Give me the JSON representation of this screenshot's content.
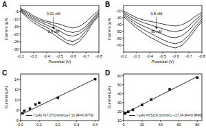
{
  "chart_data": [
    {
      "type": "line",
      "title": "A",
      "x_label": "Potential (V)",
      "y_label": "Current (μA)",
      "x": [
        -0.2,
        -0.25,
        -0.3,
        -0.35,
        -0.4,
        -0.45,
        -0.5,
        -0.55,
        -0.6,
        -0.65,
        -0.7,
        -0.75,
        -0.8
      ],
      "xlim": [
        -0.2,
        -0.8
      ],
      "xticks": [
        -0.2,
        -0.3,
        -0.4,
        -0.5,
        -0.6,
        -0.7,
        -0.8
      ],
      "ylim": [
        -32,
        -1
      ],
      "yticks": [
        -30,
        -25,
        -20,
        -15,
        -10,
        -5
      ],
      "annotations": [
        "0.01 nM",
        "0.4 nM"
      ],
      "series": [
        {
          "color": "#222222",
          "values": [
            -3,
            -5,
            -8,
            -10,
            -11.5,
            -12.5,
            -13.5,
            -15,
            -16,
            -15,
            -12,
            -8,
            -4
          ]
        },
        {
          "color": "#222222",
          "values": [
            -3.5,
            -6,
            -9,
            -11,
            -12.5,
            -14,
            -16,
            -18,
            -19,
            -18,
            -15,
            -10,
            -5
          ]
        },
        {
          "color": "#222222",
          "values": [
            -4,
            -7,
            -10,
            -12,
            -14,
            -16,
            -18,
            -20.5,
            -21.5,
            -20,
            -16.5,
            -11,
            -6
          ]
        },
        {
          "color": "#222222",
          "values": [
            -4.5,
            -8,
            -11,
            -13.5,
            -15.5,
            -18,
            -21,
            -24,
            -25,
            -23,
            -18,
            -12,
            -7
          ]
        },
        {
          "color": "#222222",
          "values": [
            -5,
            -9,
            -12.5,
            -15,
            -17.5,
            -20,
            -23,
            -26,
            -27.5,
            -25,
            -20,
            -13,
            -8
          ]
        }
      ]
    },
    {
      "type": "line",
      "title": "B",
      "x_label": "Potential (V)",
      "y_label": "Current (μA)",
      "x": [
        -0.2,
        -0.25,
        -0.3,
        -0.35,
        -0.4,
        -0.45,
        -0.5,
        -0.55,
        -0.6,
        -0.65,
        -0.7,
        -0.75,
        -0.8
      ],
      "xlim": [
        -0.2,
        -0.8
      ],
      "xticks": [
        -0.2,
        -0.3,
        -0.4,
        -0.5,
        -0.6,
        -0.7,
        -0.8
      ],
      "ylim": [
        -80,
        -12
      ],
      "yticks": [
        -70,
        -60,
        -50,
        -40,
        -30,
        -20
      ],
      "annotations": [
        "0.8 nM",
        "80 nM"
      ],
      "series": [
        {
          "color": "#222222",
          "values": [
            -20,
            -25,
            -30,
            -33,
            -35,
            -37,
            -39,
            -41,
            -42,
            -40,
            -35,
            -28,
            -22
          ]
        },
        {
          "color": "#222222",
          "values": [
            -22,
            -28,
            -33,
            -37,
            -40,
            -43,
            -46,
            -49,
            -50,
            -48,
            -42,
            -33,
            -25
          ]
        },
        {
          "color": "#222222",
          "values": [
            -24,
            -31,
            -37,
            -42,
            -46,
            -50,
            -54,
            -58,
            -59,
            -56,
            -48,
            -38,
            -28
          ]
        },
        {
          "color": "#222222",
          "values": [
            -26,
            -34,
            -41,
            -47,
            -52,
            -57,
            -62,
            -66,
            -68,
            -64,
            -55,
            -43,
            -32
          ]
        },
        {
          "color": "#222222",
          "values": [
            -28,
            -37,
            -45,
            -52,
            -58,
            -63,
            -68,
            -72,
            -74,
            -70,
            -60,
            -47,
            -35
          ]
        }
      ]
    },
    {
      "type": "scatter",
      "title": "C",
      "y_label": "Current (μA)",
      "xlim": [
        0,
        0.42
      ],
      "xticks": [
        {
          "value": 0,
          "label": "0.0"
        },
        0.1,
        0.2,
        0.3,
        0.4
      ],
      "ylim": [
        6,
        15
      ],
      "yticks": [
        6,
        8,
        10,
        12,
        14
      ],
      "legend": "lower right",
      "series": [
        {
          "type": "scatter",
          "marker": "square",
          "color": "#111111",
          "x": [
            0.01,
            0.02,
            0.05,
            0.08,
            0.1,
            0.2,
            0.4
          ],
          "values": [
            7.4,
            7.9,
            8.3,
            9.1,
            9.4,
            10.4,
            14
          ]
        },
        {
          "type": "line",
          "name": "I (μA) =17.27c(nmol/L)+7.12 (R²=0.9779)",
          "color": "#111111",
          "x": [
            0.01,
            0.4
          ],
          "values": [
            7.29,
            14.03
          ]
        }
      ]
    },
    {
      "type": "scatter",
      "title": "D",
      "y_label": "Current (μA)",
      "xlim": [
        0,
        85
      ],
      "xticks": [
        0,
        20,
        40,
        60,
        80
      ],
      "ylim": [
        10,
        62
      ],
      "yticks": [
        10,
        20,
        30,
        40,
        50,
        60
      ],
      "legend": "lower right",
      "series": [
        {
          "type": "scatter",
          "marker": "square",
          "color": "#111111",
          "x": [
            0.8,
            2,
            5,
            10,
            20,
            30,
            50,
            80
          ],
          "values": [
            17.8,
            18.6,
            19.8,
            22,
            27.5,
            33.5,
            44.8,
            58
          ]
        },
        {
          "type": "line",
          "name": "I (μA) =0.5219 c(nmol/L) +17.34 (R²=0.9896)",
          "color": "#111111",
          "x": [
            0.8,
            80
          ],
          "values": [
            17.8,
            59.1
          ]
        }
      ]
    }
  ]
}
